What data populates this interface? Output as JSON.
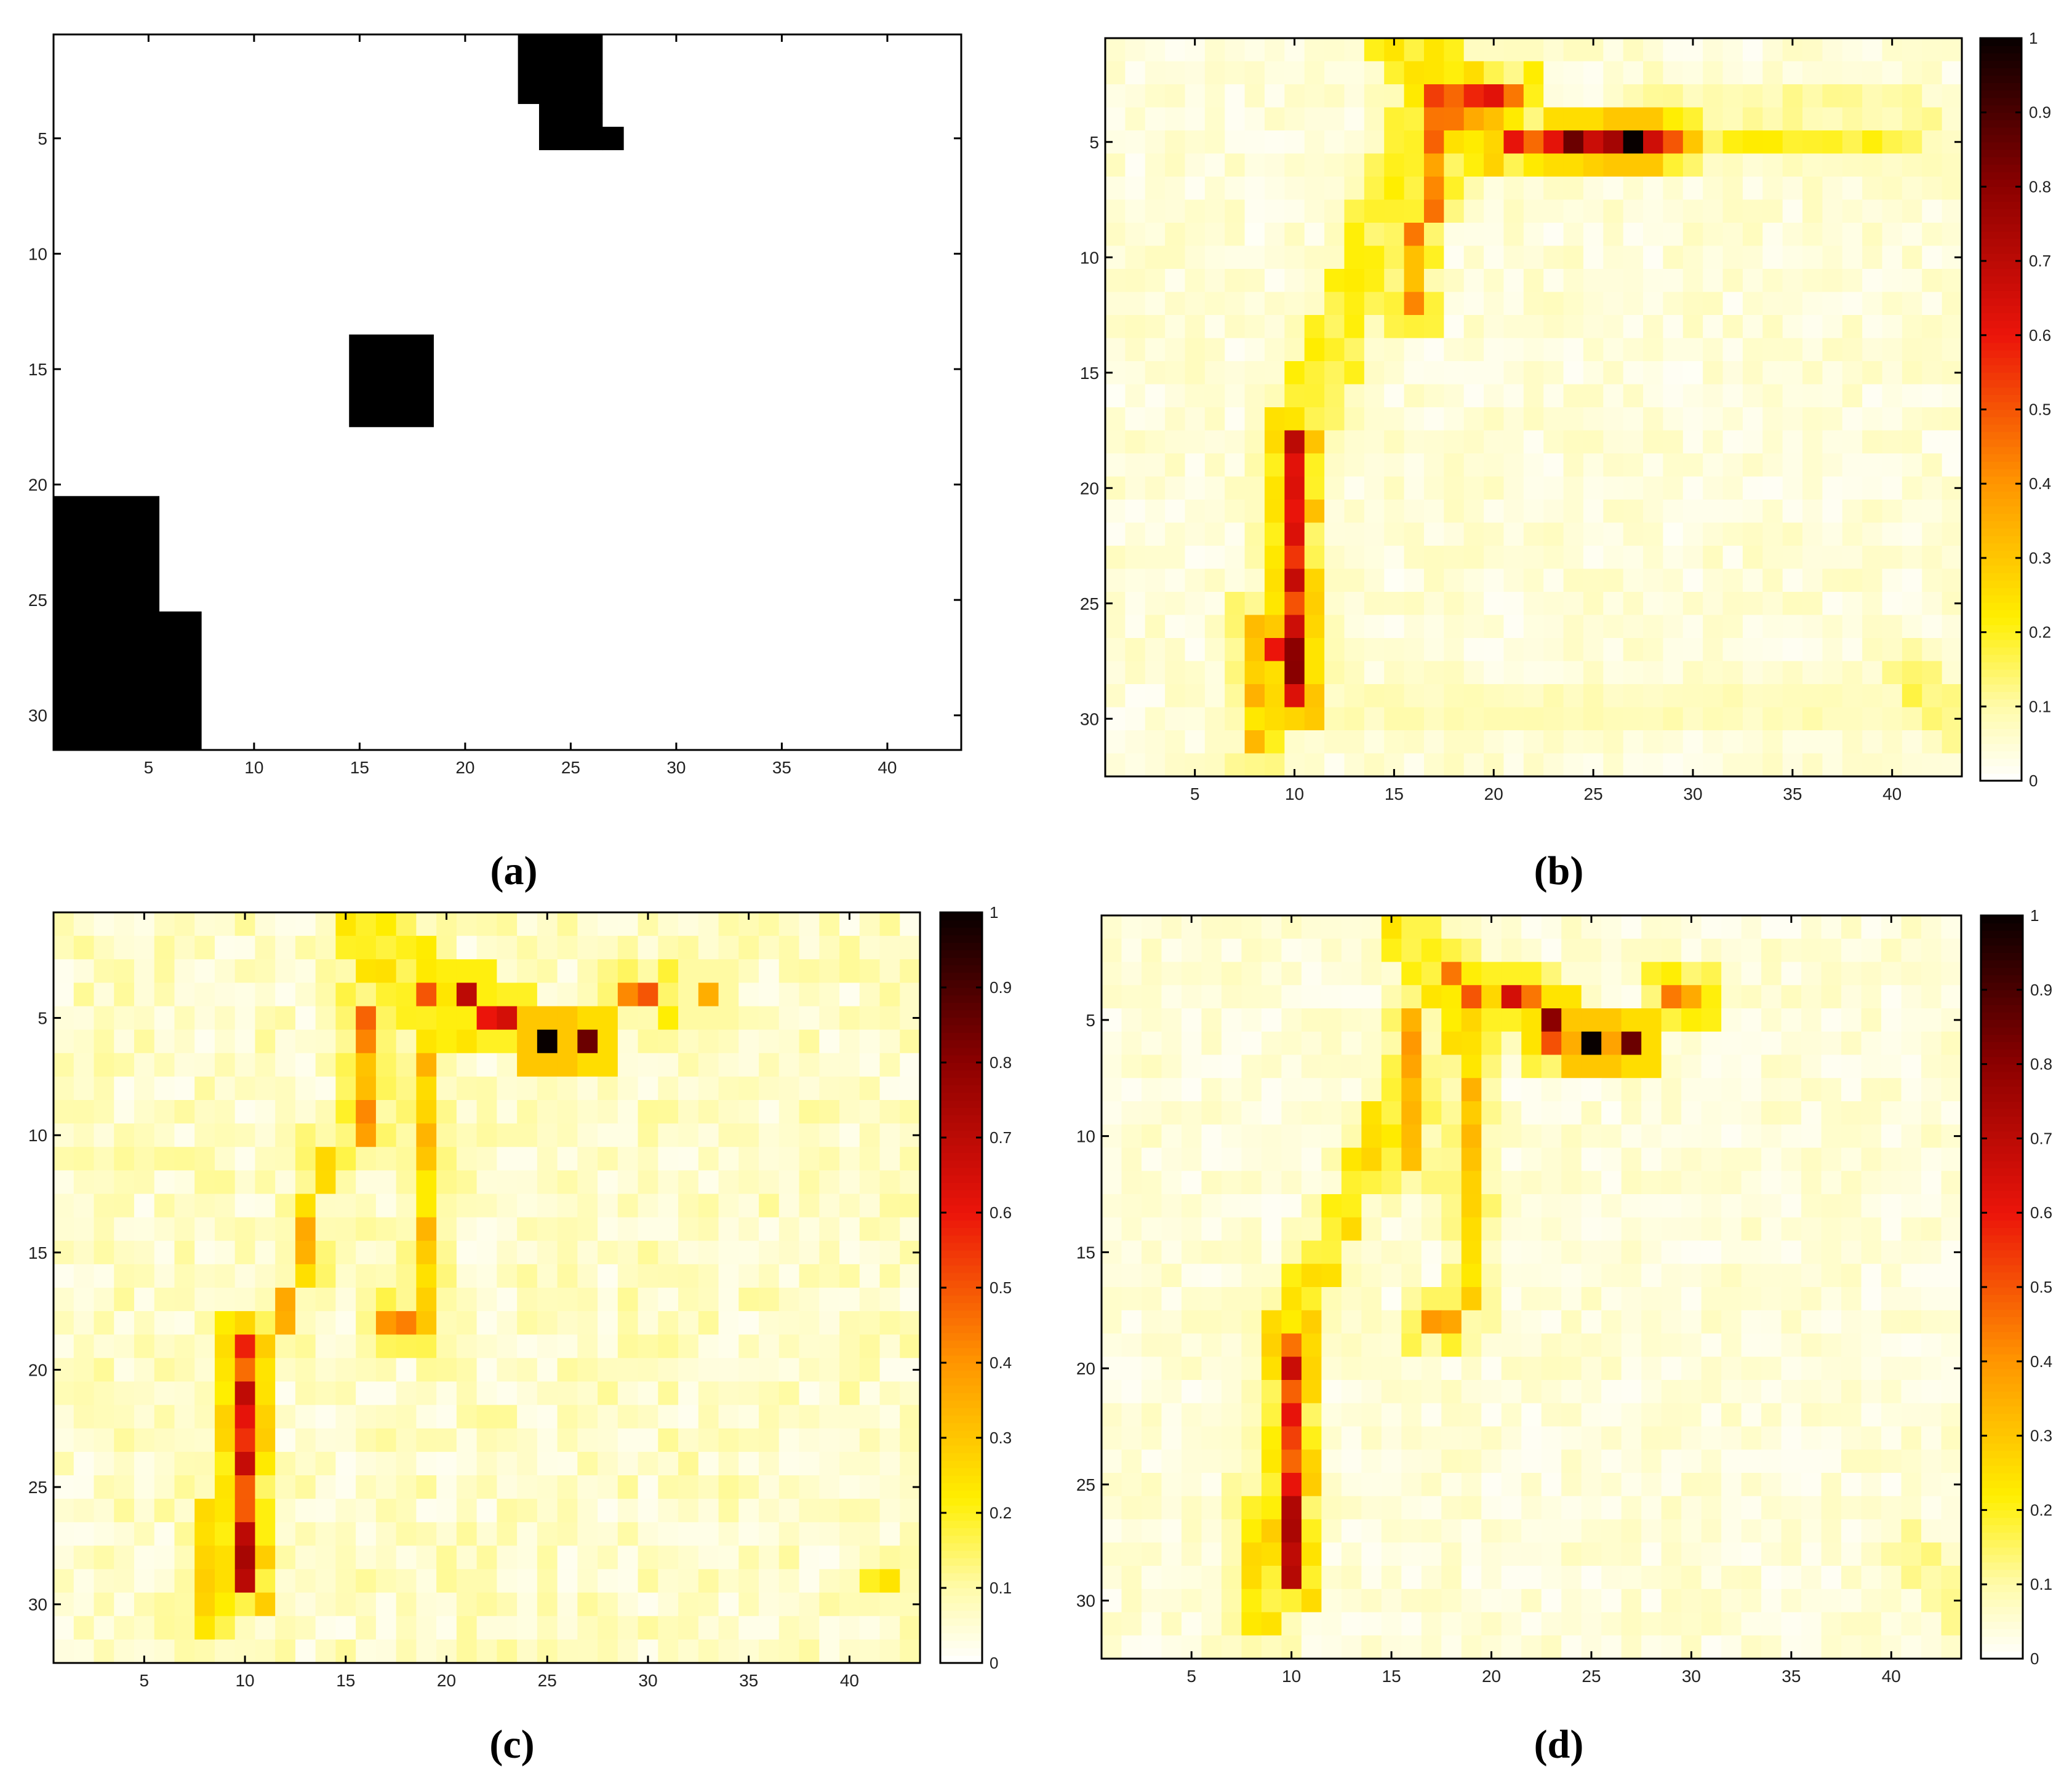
{
  "figure": {
    "panels": [
      {
        "id": "a",
        "caption": "(a)",
        "colorbar": false
      },
      {
        "id": "b",
        "caption": "(b)",
        "colorbar": true
      },
      {
        "id": "c",
        "caption": "(c)",
        "colorbar": true
      },
      {
        "id": "d",
        "caption": "(d)",
        "colorbar": true
      }
    ]
  },
  "chart_data": [
    {
      "type": "heatmap",
      "panel": "(a)",
      "grid": {
        "cols": 43,
        "rows": 31
      },
      "xlim": [
        0.5,
        43.5
      ],
      "ylim": [
        31.5,
        0.5
      ],
      "xticks": [
        5,
        10,
        15,
        20,
        25,
        30,
        35,
        40
      ],
      "yticks": [
        5,
        10,
        15,
        20,
        25,
        30
      ],
      "colormap": "binary",
      "background_value": 0,
      "blocks": [
        {
          "x": [
            23,
            26
          ],
          "y": [
            1,
            3
          ],
          "value": 1
        },
        {
          "x": [
            24,
            26
          ],
          "y": [
            4,
            5
          ],
          "value": 1
        },
        {
          "x": [
            27,
            27
          ],
          "y": [
            5,
            5
          ],
          "value": 1
        },
        {
          "x": [
            15,
            18
          ],
          "y": [
            14,
            17
          ],
          "value": 1
        },
        {
          "x": [
            1,
            5
          ],
          "y": [
            21,
            31
          ],
          "value": 1
        },
        {
          "x": [
            6,
            7
          ],
          "y": [
            26,
            31
          ],
          "value": 1
        }
      ]
    },
    {
      "type": "heatmap",
      "panel": "(b)",
      "grid": {
        "cols": 43,
        "rows": 32
      },
      "xlim": [
        0.5,
        43.5
      ],
      "ylim": [
        32.5,
        0.5
      ],
      "xticks": [
        5,
        10,
        15,
        20,
        25,
        30,
        35,
        40
      ],
      "yticks": [
        5,
        10,
        15,
        20,
        25,
        30
      ],
      "colormap": "hot_reversed",
      "colorbar": {
        "ticks": [
          0,
          0.1,
          0.2,
          0.3,
          0.4,
          0.5,
          0.6,
          0.7,
          0.8,
          0.9,
          1
        ],
        "range": [
          0,
          1
        ]
      },
      "background_value": 0.04,
      "features": [
        {
          "kind": "segment",
          "from": [
            16,
            1
          ],
          "to": [
            19,
            4
          ],
          "value": 0.22,
          "width": 4
        },
        {
          "kind": "segment",
          "from": [
            17,
            3
          ],
          "to": [
            21,
            3
          ],
          "value": 0.52,
          "width": 1
        },
        {
          "kind": "segment",
          "from": [
            17,
            4
          ],
          "to": [
            20,
            4
          ],
          "value": 0.38,
          "width": 1
        },
        {
          "kind": "segment",
          "from": [
            21,
            5
          ],
          "to": [
            29,
            5
          ],
          "value": 0.62,
          "width": 1
        },
        {
          "kind": "segment",
          "from": [
            30,
            5
          ],
          "to": [
            41,
            5
          ],
          "value": 0.18,
          "width": 1
        },
        {
          "kind": "segment",
          "from": [
            28,
            3
          ],
          "to": [
            41,
            4
          ],
          "value": 0.1,
          "width": 2
        },
        {
          "kind": "point",
          "at": [
            24,
            5
          ],
          "value": 0.85
        },
        {
          "kind": "point",
          "at": [
            26,
            5
          ],
          "value": 0.75
        },
        {
          "kind": "point",
          "at": [
            27,
            5
          ],
          "value": 1.0
        },
        {
          "kind": "segment",
          "from": [
            17,
            5
          ],
          "to": [
            16,
            12
          ],
          "value": 0.4,
          "width": 1
        },
        {
          "kind": "segment",
          "from": [
            16,
            5
          ],
          "to": [
            10,
            18
          ],
          "value": 0.18,
          "width": 3
        },
        {
          "kind": "segment",
          "from": [
            10,
            18
          ],
          "to": [
            10,
            29
          ],
          "value": 0.65,
          "width": 1
        },
        {
          "kind": "segment",
          "from": [
            9,
            18
          ],
          "to": [
            9,
            31
          ],
          "value": 0.22,
          "width": 1
        },
        {
          "kind": "segment",
          "from": [
            11,
            18
          ],
          "to": [
            11,
            30
          ],
          "value": 0.18,
          "width": 1
        },
        {
          "kind": "segment",
          "from": [
            8,
            26
          ],
          "to": [
            8,
            31
          ],
          "value": 0.3,
          "width": 1
        },
        {
          "kind": "point",
          "at": [
            10,
            27
          ],
          "value": 0.8
        },
        {
          "kind": "point",
          "at": [
            9,
            27
          ],
          "value": 0.6
        },
        {
          "kind": "segment",
          "from": [
            12,
            29
          ],
          "to": [
            42,
            30
          ],
          "value": 0.08,
          "width": 2
        },
        {
          "kind": "segment",
          "from": [
            41,
            28
          ],
          "to": [
            43,
            30
          ],
          "value": 0.14,
          "width": 2
        }
      ]
    },
    {
      "type": "heatmap",
      "panel": "(c)",
      "grid": {
        "cols": 43,
        "rows": 32
      },
      "xlim": [
        0.5,
        43.5
      ],
      "ylim": [
        32.5,
        0.5
      ],
      "xticks": [
        5,
        10,
        15,
        20,
        25,
        30,
        35,
        40
      ],
      "yticks": [
        5,
        10,
        15,
        20,
        25,
        30
      ],
      "colormap": "hot_reversed",
      "colorbar": {
        "ticks": [
          0,
          0.1,
          0.2,
          0.3,
          0.4,
          0.5,
          0.6,
          0.7,
          0.8,
          0.9,
          1
        ],
        "range": [
          0,
          1
        ]
      },
      "background_value": 0.06,
      "features": [
        {
          "kind": "segment",
          "from": [
            16,
            1
          ],
          "to": [
            20,
            5
          ],
          "value": 0.2,
          "width": 3
        },
        {
          "kind": "point",
          "at": [
            19,
            4
          ],
          "value": 0.5
        },
        {
          "kind": "point",
          "at": [
            21,
            4
          ],
          "value": 0.7
        },
        {
          "kind": "point",
          "at": [
            22,
            5
          ],
          "value": 0.6
        },
        {
          "kind": "point",
          "at": [
            23,
            5
          ],
          "value": 0.65
        },
        {
          "kind": "point",
          "at": [
            25,
            6
          ],
          "value": 1.0
        },
        {
          "kind": "point",
          "at": [
            27,
            6
          ],
          "value": 0.85
        },
        {
          "kind": "segment",
          "from": [
            29,
            4
          ],
          "to": [
            30,
            4
          ],
          "value": 0.45,
          "width": 1
        },
        {
          "kind": "point",
          "at": [
            33,
            4
          ],
          "value": 0.35
        },
        {
          "kind": "segment",
          "from": [
            16,
            5
          ],
          "to": [
            16,
            10
          ],
          "value": 0.4,
          "width": 1
        },
        {
          "kind": "segment",
          "from": [
            19,
            7
          ],
          "to": [
            19,
            17
          ],
          "value": 0.3,
          "width": 1
        },
        {
          "kind": "segment",
          "from": [
            14,
            11
          ],
          "to": [
            12,
            18
          ],
          "value": 0.3,
          "width": 1
        },
        {
          "kind": "segment",
          "from": [
            10,
            19
          ],
          "to": [
            10,
            29
          ],
          "value": 0.6,
          "width": 1
        },
        {
          "kind": "segment",
          "from": [
            9,
            18
          ],
          "to": [
            9,
            31
          ],
          "value": 0.18,
          "width": 1
        },
        {
          "kind": "segment",
          "from": [
            8,
            26
          ],
          "to": [
            8,
            31
          ],
          "value": 0.25,
          "width": 1
        },
        {
          "kind": "point",
          "at": [
            10,
            27
          ],
          "value": 0.7
        },
        {
          "kind": "segment",
          "from": [
            17,
            18
          ],
          "to": [
            19,
            18
          ],
          "value": 0.35,
          "width": 1
        },
        {
          "kind": "segment",
          "from": [
            41,
            29
          ],
          "to": [
            42,
            29
          ],
          "value": 0.2,
          "width": 1
        }
      ]
    },
    {
      "type": "heatmap",
      "panel": "(d)",
      "grid": {
        "cols": 43,
        "rows": 32
      },
      "xlim": [
        0.5,
        43.5
      ],
      "ylim": [
        32.5,
        0.5
      ],
      "xticks": [
        5,
        10,
        15,
        20,
        25,
        30,
        35,
        40
      ],
      "yticks": [
        5,
        10,
        15,
        20,
        25,
        30
      ],
      "colormap": "hot_reversed",
      "colorbar": {
        "ticks": [
          0,
          0.1,
          0.2,
          0.3,
          0.4,
          0.5,
          0.6,
          0.7,
          0.8,
          0.9,
          1
        ],
        "range": [
          0,
          1
        ]
      },
      "background_value": 0.04,
      "features": [
        {
          "kind": "segment",
          "from": [
            16,
            1
          ],
          "to": [
            19,
            5
          ],
          "value": 0.22,
          "width": 3
        },
        {
          "kind": "point",
          "at": [
            18,
            3
          ],
          "value": 0.45
        },
        {
          "kind": "point",
          "at": [
            19,
            4
          ],
          "value": 0.5
        },
        {
          "kind": "point",
          "at": [
            21,
            4
          ],
          "value": 0.65
        },
        {
          "kind": "point",
          "at": [
            22,
            4
          ],
          "value": 0.45
        },
        {
          "kind": "point",
          "at": [
            23,
            5
          ],
          "value": 0.8
        },
        {
          "kind": "segment",
          "from": [
            23,
            6
          ],
          "to": [
            27,
            6
          ],
          "value": 0.45,
          "width": 1
        },
        {
          "kind": "point",
          "at": [
            25,
            6
          ],
          "value": 1.0
        },
        {
          "kind": "point",
          "at": [
            27,
            6
          ],
          "value": 0.85
        },
        {
          "kind": "segment",
          "from": [
            29,
            4
          ],
          "to": [
            30,
            4
          ],
          "value": 0.45,
          "width": 1
        },
        {
          "kind": "segment",
          "from": [
            16,
            5
          ],
          "to": [
            16,
            11
          ],
          "value": 0.38,
          "width": 1
        },
        {
          "kind": "segment",
          "from": [
            19,
            7
          ],
          "to": [
            19,
            17
          ],
          "value": 0.3,
          "width": 1
        },
        {
          "kind": "segment",
          "from": [
            15,
            9
          ],
          "to": [
            10,
            18
          ],
          "value": 0.22,
          "width": 2
        },
        {
          "kind": "segment",
          "from": [
            17,
            18
          ],
          "to": [
            18,
            18
          ],
          "value": 0.45,
          "width": 1
        },
        {
          "kind": "segment",
          "from": [
            10,
            19
          ],
          "to": [
            10,
            29
          ],
          "value": 0.6,
          "width": 1
        },
        {
          "kind": "segment",
          "from": [
            9,
            18
          ],
          "to": [
            9,
            31
          ],
          "value": 0.2,
          "width": 1
        },
        {
          "kind": "segment",
          "from": [
            8,
            26
          ],
          "to": [
            8,
            31
          ],
          "value": 0.25,
          "width": 1
        },
        {
          "kind": "segment",
          "from": [
            41,
            28
          ],
          "to": [
            43,
            30
          ],
          "value": 0.12,
          "width": 2
        }
      ]
    }
  ]
}
